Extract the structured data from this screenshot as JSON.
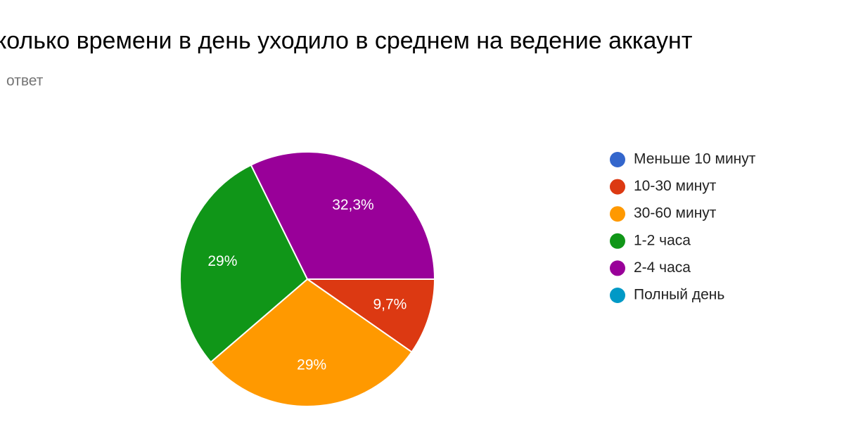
{
  "chart_data": {
    "type": "pie",
    "title": "колько времени в день уходило в среднем на ведение аккаунт",
    "subtitle": "ответ",
    "categories": [
      "Меньше 10 минут",
      "10-30 минут",
      "30-60 минут",
      "1-2 часа",
      "2-4 часа",
      "Полный день"
    ],
    "values": [
      0,
      9.7,
      29,
      29,
      32.3,
      0
    ],
    "value_labels": [
      null,
      "9,7%",
      "29%",
      "29%",
      "32,3%",
      null
    ],
    "colors": [
      "#3366cc",
      "#dc3912",
      "#ff9900",
      "#109618",
      "#990099",
      "#0099c6"
    ],
    "legend": "right"
  }
}
